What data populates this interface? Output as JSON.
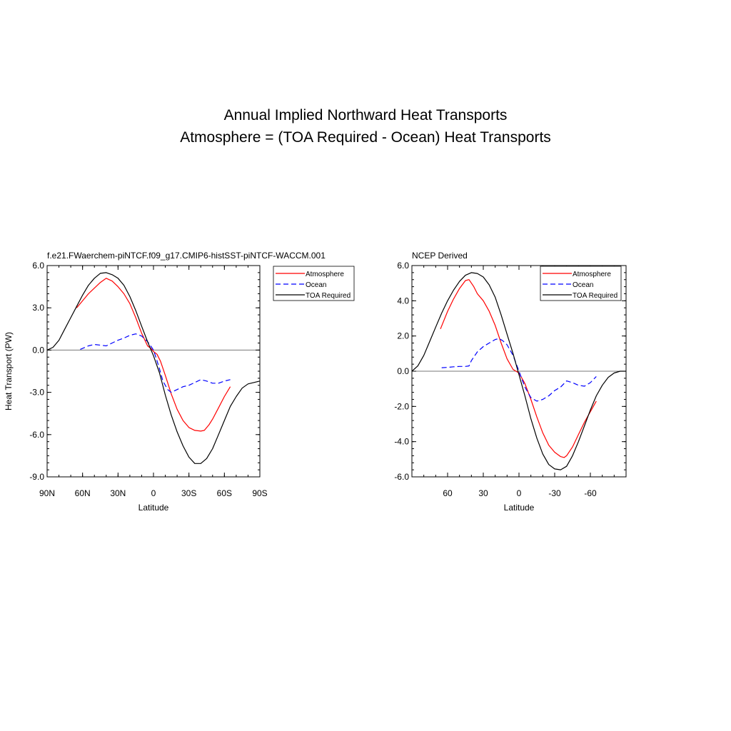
{
  "title_line1": "Annual Implied Northward Heat Transports",
  "title_line2": "Atmosphere = (TOA Required - Ocean) Heat Transports",
  "chart_data": [
    {
      "type": "line",
      "title": "f.e21.FWaerchem-piNTCF.f09_g17.CMIP6-histSST-piNTCF-WACCM.001",
      "xlabel": "Latitude",
      "ylabel": "Heat Transport (PW)",
      "xlim": [
        90,
        -90
      ],
      "ylim": [
        -9,
        6
      ],
      "xticks": [
        90,
        60,
        30,
        0,
        -30,
        -60,
        -90
      ],
      "xtick_labels": [
        "90N",
        "60N",
        "30N",
        "0",
        "30S",
        "60S",
        "90S"
      ],
      "yticks": [
        6,
        3,
        0,
        -3,
        -6,
        -9
      ],
      "ytick_labels": [
        "6.0",
        "3.0",
        "0.0",
        "-3.0",
        "-6.0",
        "-9.0"
      ],
      "grid": false,
      "legend_position": "outside-right",
      "series": [
        {
          "name": "Atmosphere",
          "color": "#ff0000",
          "dash": "solid",
          "x": [
            65,
            55,
            45,
            40,
            35,
            30,
            25,
            20,
            15,
            10,
            5,
            2,
            0,
            -3,
            -6,
            -10,
            -15,
            -20,
            -25,
            -30,
            -35,
            -40,
            -43,
            -47,
            -50,
            -55,
            -60,
            -65
          ],
          "y": [
            3.0,
            4.0,
            4.8,
            5.1,
            4.9,
            4.5,
            4.0,
            3.3,
            2.3,
            1.2,
            0.3,
            0.1,
            -0.1,
            -0.3,
            -0.8,
            -1.8,
            -3.1,
            -4.2,
            -5.0,
            -5.5,
            -5.7,
            -5.75,
            -5.7,
            -5.3,
            -4.9,
            -4.1,
            -3.3,
            -2.6
          ]
        },
        {
          "name": "Ocean",
          "color": "#0000ff",
          "dash": "dashed",
          "x": [
            62,
            55,
            50,
            45,
            40,
            35,
            30,
            25,
            20,
            15,
            10,
            5,
            2,
            0,
            -2,
            -5,
            -8,
            -12,
            -15,
            -20,
            -25,
            -30,
            -35,
            -40,
            -45,
            -50,
            -55,
            -60,
            -65
          ],
          "y": [
            0.05,
            0.3,
            0.4,
            0.35,
            0.3,
            0.5,
            0.7,
            0.85,
            1.05,
            1.15,
            1.0,
            0.6,
            0.25,
            0.0,
            -0.5,
            -1.3,
            -2.2,
            -2.8,
            -3.0,
            -2.8,
            -2.6,
            -2.5,
            -2.3,
            -2.1,
            -2.2,
            -2.35,
            -2.35,
            -2.2,
            -2.1
          ]
        },
        {
          "name": "TOA Required",
          "color": "#000000",
          "dash": "solid",
          "x": [
            90,
            85,
            80,
            75,
            70,
            65,
            60,
            55,
            50,
            45,
            40,
            35,
            30,
            25,
            20,
            15,
            10,
            5,
            0,
            -5,
            -10,
            -15,
            -20,
            -25,
            -30,
            -35,
            -40,
            -45,
            -50,
            -55,
            -60,
            -65,
            -70,
            -75,
            -80,
            -85,
            -90
          ],
          "y": [
            0.0,
            0.2,
            0.7,
            1.5,
            2.3,
            3.1,
            3.9,
            4.6,
            5.1,
            5.45,
            5.5,
            5.35,
            5.1,
            4.6,
            3.8,
            2.8,
            1.7,
            0.6,
            -0.4,
            -1.6,
            -3.2,
            -4.6,
            -5.8,
            -6.8,
            -7.6,
            -8.05,
            -8.05,
            -7.7,
            -7.0,
            -6.0,
            -5.0,
            -4.0,
            -3.3,
            -2.7,
            -2.4,
            -2.3,
            -2.2
          ]
        }
      ]
    },
    {
      "type": "line",
      "title": "NCEP Derived",
      "xlabel": "Latitude",
      "ylabel": "",
      "xlim": [
        90,
        -90
      ],
      "ylim": [
        -6,
        6
      ],
      "xticks": [
        60,
        30,
        0,
        -30,
        -60
      ],
      "xtick_labels": [
        "60",
        "30",
        "0",
        "-30",
        "-60"
      ],
      "yticks": [
        6,
        4,
        2,
        0,
        -2,
        -4,
        -6
      ],
      "ytick_labels": [
        "6.0",
        "4.0",
        "2.0",
        "0.0",
        "-2.0",
        "-4.0",
        "-6.0"
      ],
      "grid": false,
      "legend_position": "top-right",
      "series": [
        {
          "name": "Atmosphere",
          "color": "#ff0000",
          "dash": "solid",
          "x": [
            66,
            60,
            55,
            50,
            45,
            42,
            38,
            35,
            30,
            25,
            20,
            15,
            10,
            5,
            0,
            -5,
            -10,
            -15,
            -20,
            -25,
            -30,
            -35,
            -38,
            -40,
            -45,
            -50,
            -55,
            -60,
            -65
          ],
          "y": [
            2.4,
            3.4,
            4.1,
            4.7,
            5.15,
            5.2,
            4.8,
            4.4,
            4.0,
            3.4,
            2.6,
            1.6,
            0.7,
            0.1,
            -0.1,
            -0.7,
            -1.6,
            -2.6,
            -3.5,
            -4.2,
            -4.6,
            -4.85,
            -4.9,
            -4.8,
            -4.3,
            -3.6,
            -2.9,
            -2.3,
            -1.7
          ]
        },
        {
          "name": "Ocean",
          "color": "#0000ff",
          "dash": "dashed",
          "x": [
            65,
            60,
            55,
            50,
            45,
            42,
            40,
            35,
            30,
            25,
            20,
            17,
            14,
            10,
            5,
            0,
            -5,
            -10,
            -15,
            -20,
            -25,
            -30,
            -35,
            -40,
            -45,
            -50,
            -55,
            -60,
            -65
          ],
          "y": [
            0.2,
            0.22,
            0.25,
            0.27,
            0.27,
            0.3,
            0.6,
            1.1,
            1.4,
            1.6,
            1.8,
            1.85,
            1.75,
            1.5,
            0.9,
            0.0,
            -0.9,
            -1.5,
            -1.7,
            -1.6,
            -1.4,
            -1.1,
            -0.9,
            -0.55,
            -0.65,
            -0.8,
            -0.85,
            -0.65,
            -0.3
          ]
        },
        {
          "name": "TOA Required",
          "color": "#000000",
          "dash": "solid",
          "x": [
            90,
            85,
            80,
            75,
            70,
            65,
            60,
            55,
            50,
            45,
            40,
            35,
            30,
            25,
            20,
            15,
            10,
            5,
            0,
            -5,
            -10,
            -15,
            -20,
            -25,
            -30,
            -35,
            -40,
            -45,
            -50,
            -55,
            -60,
            -65,
            -70,
            -75,
            -80,
            -85,
            -90
          ],
          "y": [
            0.0,
            0.3,
            0.9,
            1.7,
            2.5,
            3.3,
            4.0,
            4.6,
            5.1,
            5.45,
            5.6,
            5.55,
            5.35,
            4.9,
            4.2,
            3.2,
            2.1,
            1.0,
            -0.2,
            -1.4,
            -2.7,
            -3.8,
            -4.7,
            -5.3,
            -5.55,
            -5.6,
            -5.4,
            -4.8,
            -4.0,
            -3.1,
            -2.2,
            -1.4,
            -0.8,
            -0.35,
            -0.1,
            0.0,
            0.0
          ]
        }
      ]
    }
  ]
}
